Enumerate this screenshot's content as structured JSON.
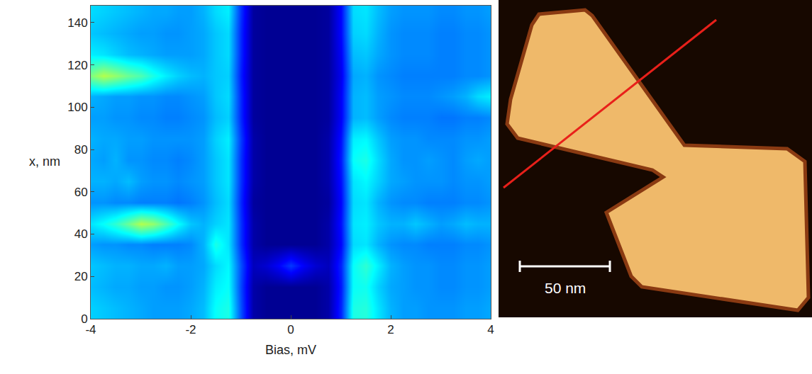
{
  "chart_data": {
    "type": "heatmap",
    "x_label": "Bias, mV",
    "y_label": "x, nm",
    "xlim": [
      -4,
      4
    ],
    "ylim": [
      0,
      148
    ],
    "xticks": [
      -4,
      -2,
      0,
      2,
      4
    ],
    "yticks": [
      0,
      20,
      40,
      60,
      80,
      100,
      120,
      140
    ],
    "zlim": [
      0,
      1
    ],
    "x": [
      -4,
      -3.75,
      -3.5,
      -3.25,
      -3,
      -2.75,
      -2.5,
      -2.25,
      -2,
      -1.75,
      -1.5,
      -1.25,
      -1,
      -0.75,
      -0.5,
      -0.25,
      0,
      0.25,
      0.5,
      0.75,
      1,
      1.25,
      1.5,
      1.75,
      2,
      2.25,
      2.5,
      2.75,
      3,
      3.25,
      3.5,
      3.75,
      4
    ],
    "y": [
      5,
      15,
      25,
      35,
      45,
      55,
      65,
      75,
      85,
      95,
      105,
      115,
      125,
      135,
      145
    ],
    "z": [
      [
        0.33,
        0.32,
        0.31,
        0.3,
        0.29,
        0.28,
        0.28,
        0.28,
        0.29,
        0.31,
        0.38,
        0.4,
        0.2,
        0.04,
        0.02,
        0.02,
        0.02,
        0.02,
        0.02,
        0.04,
        0.16,
        0.4,
        0.41,
        0.35,
        0.3,
        0.28,
        0.28,
        0.27,
        0.27,
        0.27,
        0.28,
        0.28,
        0.29
      ],
      [
        0.31,
        0.3,
        0.29,
        0.29,
        0.28,
        0.28,
        0.27,
        0.27,
        0.28,
        0.3,
        0.36,
        0.38,
        0.19,
        0.04,
        0.02,
        0.02,
        0.02,
        0.02,
        0.02,
        0.04,
        0.15,
        0.38,
        0.39,
        0.33,
        0.29,
        0.28,
        0.27,
        0.27,
        0.26,
        0.26,
        0.27,
        0.27,
        0.28
      ],
      [
        0.32,
        0.31,
        0.3,
        0.3,
        0.29,
        0.29,
        0.3,
        0.28,
        0.28,
        0.29,
        0.34,
        0.37,
        0.2,
        0.06,
        0.08,
        0.12,
        0.18,
        0.12,
        0.08,
        0.06,
        0.16,
        0.38,
        0.42,
        0.36,
        0.3,
        0.28,
        0.27,
        0.27,
        0.26,
        0.26,
        0.27,
        0.27,
        0.28
      ],
      [
        0.28,
        0.27,
        0.27,
        0.26,
        0.26,
        0.25,
        0.25,
        0.25,
        0.26,
        0.3,
        0.4,
        0.35,
        0.17,
        0.04,
        0.02,
        0.02,
        0.02,
        0.02,
        0.02,
        0.04,
        0.13,
        0.34,
        0.35,
        0.3,
        0.27,
        0.26,
        0.26,
        0.25,
        0.25,
        0.25,
        0.26,
        0.26,
        0.27
      ],
      [
        0.35,
        0.38,
        0.42,
        0.48,
        0.55,
        0.52,
        0.45,
        0.38,
        0.32,
        0.3,
        0.33,
        0.35,
        0.17,
        0.04,
        0.02,
        0.02,
        0.02,
        0.02,
        0.02,
        0.04,
        0.14,
        0.35,
        0.36,
        0.32,
        0.3,
        0.3,
        0.32,
        0.3,
        0.28,
        0.29,
        0.31,
        0.3,
        0.3
      ],
      [
        0.27,
        0.27,
        0.26,
        0.26,
        0.25,
        0.25,
        0.25,
        0.24,
        0.25,
        0.27,
        0.31,
        0.34,
        0.16,
        0.03,
        0.02,
        0.02,
        0.02,
        0.02,
        0.02,
        0.03,
        0.13,
        0.34,
        0.35,
        0.3,
        0.27,
        0.26,
        0.26,
        0.25,
        0.25,
        0.25,
        0.26,
        0.26,
        0.27
      ],
      [
        0.3,
        0.3,
        0.29,
        0.31,
        0.28,
        0.27,
        0.27,
        0.26,
        0.27,
        0.28,
        0.32,
        0.35,
        0.17,
        0.04,
        0.02,
        0.02,
        0.02,
        0.02,
        0.02,
        0.04,
        0.14,
        0.35,
        0.37,
        0.33,
        0.29,
        0.28,
        0.27,
        0.27,
        0.27,
        0.26,
        0.27,
        0.27,
        0.28
      ],
      [
        0.29,
        0.28,
        0.3,
        0.27,
        0.27,
        0.26,
        0.26,
        0.25,
        0.26,
        0.28,
        0.32,
        0.35,
        0.17,
        0.04,
        0.02,
        0.02,
        0.02,
        0.02,
        0.02,
        0.04,
        0.15,
        0.38,
        0.4,
        0.34,
        0.29,
        0.27,
        0.27,
        0.28,
        0.27,
        0.26,
        0.28,
        0.29,
        0.28
      ],
      [
        0.3,
        0.29,
        0.29,
        0.28,
        0.28,
        0.27,
        0.27,
        0.27,
        0.27,
        0.28,
        0.33,
        0.36,
        0.18,
        0.04,
        0.02,
        0.02,
        0.02,
        0.02,
        0.02,
        0.04,
        0.14,
        0.36,
        0.37,
        0.32,
        0.28,
        0.27,
        0.27,
        0.26,
        0.26,
        0.26,
        0.27,
        0.27,
        0.28
      ],
      [
        0.28,
        0.28,
        0.27,
        0.27,
        0.26,
        0.26,
        0.25,
        0.25,
        0.26,
        0.27,
        0.31,
        0.33,
        0.16,
        0.03,
        0.02,
        0.02,
        0.02,
        0.02,
        0.02,
        0.03,
        0.12,
        0.3,
        0.31,
        0.28,
        0.26,
        0.25,
        0.25,
        0.25,
        0.24,
        0.24,
        0.25,
        0.25,
        0.26
      ],
      [
        0.3,
        0.29,
        0.28,
        0.28,
        0.27,
        0.27,
        0.26,
        0.26,
        0.27,
        0.28,
        0.32,
        0.34,
        0.16,
        0.03,
        0.02,
        0.02,
        0.02,
        0.02,
        0.02,
        0.03,
        0.12,
        0.3,
        0.31,
        0.28,
        0.27,
        0.26,
        0.26,
        0.26,
        0.27,
        0.28,
        0.3,
        0.34,
        0.36
      ],
      [
        0.5,
        0.55,
        0.52,
        0.48,
        0.45,
        0.4,
        0.36,
        0.33,
        0.31,
        0.3,
        0.32,
        0.33,
        0.15,
        0.03,
        0.02,
        0.02,
        0.02,
        0.02,
        0.02,
        0.03,
        0.11,
        0.29,
        0.3,
        0.27,
        0.26,
        0.25,
        0.25,
        0.25,
        0.25,
        0.25,
        0.26,
        0.26,
        0.27
      ],
      [
        0.36,
        0.35,
        0.33,
        0.31,
        0.3,
        0.29,
        0.28,
        0.28,
        0.28,
        0.29,
        0.32,
        0.34,
        0.16,
        0.03,
        0.02,
        0.02,
        0.02,
        0.02,
        0.02,
        0.03,
        0.12,
        0.31,
        0.32,
        0.29,
        0.27,
        0.26,
        0.26,
        0.26,
        0.25,
        0.25,
        0.26,
        0.26,
        0.27
      ],
      [
        0.32,
        0.31,
        0.3,
        0.29,
        0.28,
        0.28,
        0.27,
        0.27,
        0.28,
        0.29,
        0.32,
        0.34,
        0.16,
        0.03,
        0.02,
        0.02,
        0.02,
        0.02,
        0.02,
        0.03,
        0.13,
        0.33,
        0.34,
        0.3,
        0.27,
        0.26,
        0.26,
        0.26,
        0.25,
        0.25,
        0.26,
        0.26,
        0.27
      ],
      [
        0.34,
        0.33,
        0.32,
        0.31,
        0.3,
        0.29,
        0.29,
        0.28,
        0.28,
        0.3,
        0.34,
        0.36,
        0.17,
        0.03,
        0.02,
        0.02,
        0.02,
        0.02,
        0.02,
        0.03,
        0.13,
        0.34,
        0.35,
        0.31,
        0.28,
        0.27,
        0.27,
        0.27,
        0.26,
        0.26,
        0.27,
        0.27,
        0.28
      ]
    ]
  },
  "image": {
    "scale_bar_label": "50 nm"
  }
}
